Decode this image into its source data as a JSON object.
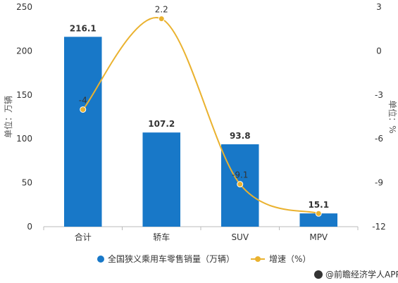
{
  "chart_data": {
    "type": "bar",
    "categories": [
      "合计",
      "轿车",
      "SUV",
      "MPV"
    ],
    "series": [
      {
        "name": "全国狭义乘用车零售销量（万辆）",
        "type": "bar",
        "axis": "left",
        "values": [
          216.1,
          107.2,
          93.8,
          15.1
        ],
        "labels": [
          "216.1",
          "107.2",
          "93.8",
          "15.1"
        ],
        "color": "#1878C8"
      },
      {
        "name": "增速（%）",
        "type": "line",
        "axis": "right",
        "values": [
          -4,
          2.2,
          -9.1,
          -11.1
        ],
        "labels": [
          "-4",
          "2.2",
          "-9.1",
          ""
        ],
        "color": "#EAB22F"
      }
    ],
    "ylabel": "单位：万辆",
    "y2label": "单位：%",
    "ylim": [
      0,
      250
    ],
    "y2lim": [
      -12,
      3
    ],
    "yticks": [
      "0",
      "50",
      "100",
      "150",
      "200",
      "250"
    ],
    "y2ticks": [
      "-12",
      "-9",
      "-6",
      "-3",
      "0",
      "3"
    ],
    "grid": false,
    "legend_position": "bottom"
  },
  "watermark": "@前瞻经济学人APP"
}
